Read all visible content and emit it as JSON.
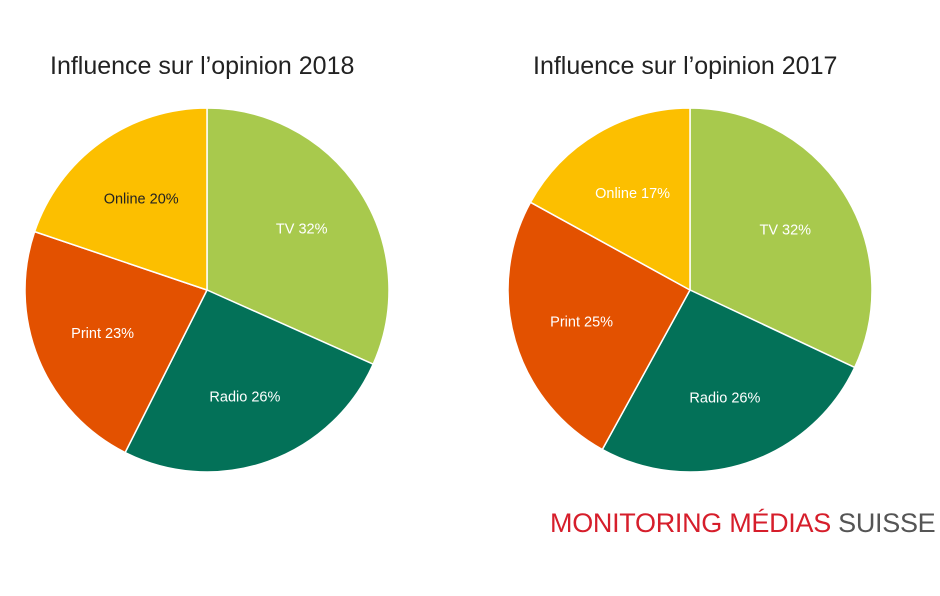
{
  "chart_data": [
    {
      "type": "pie",
      "title": "Influence sur l’opinion 2018",
      "slices": [
        {
          "name": "TV",
          "value": 32,
          "label": "TV 32%",
          "color": "#a8c94d",
          "label_color": "#ffffff"
        },
        {
          "name": "Radio",
          "value": 26,
          "label": "Radio 26%",
          "color": "#037158",
          "label_color": "#ffffff"
        },
        {
          "name": "Print",
          "value": 23,
          "label": "Print 23%",
          "color": "#e35100",
          "label_color": "#ffffff"
        },
        {
          "name": "Online",
          "value": 20,
          "label": "Online 20%",
          "color": "#fcbf00",
          "label_color": "#222222"
        }
      ]
    },
    {
      "type": "pie",
      "title": "Influence sur l’opinion 2017",
      "slices": [
        {
          "name": "TV",
          "value": 32,
          "label": "TV 32%",
          "color": "#a8c94d",
          "label_color": "#ffffff"
        },
        {
          "name": "Radio",
          "value": 26,
          "label": "Radio 26%",
          "color": "#037158",
          "label_color": "#ffffff"
        },
        {
          "name": "Print",
          "value": 25,
          "label": "Print 25%",
          "color": "#e35100",
          "label_color": "#ffffff"
        },
        {
          "name": "Online",
          "value": 17,
          "label": "Online 17%",
          "color": "#fcbf00",
          "label_color": "#ffffff"
        }
      ]
    }
  ],
  "brand": {
    "part1": "MONITORING MÉDIAS",
    "part2": "SUISSE",
    "color_primary": "#d61e2b",
    "color_secondary": "#555555"
  }
}
